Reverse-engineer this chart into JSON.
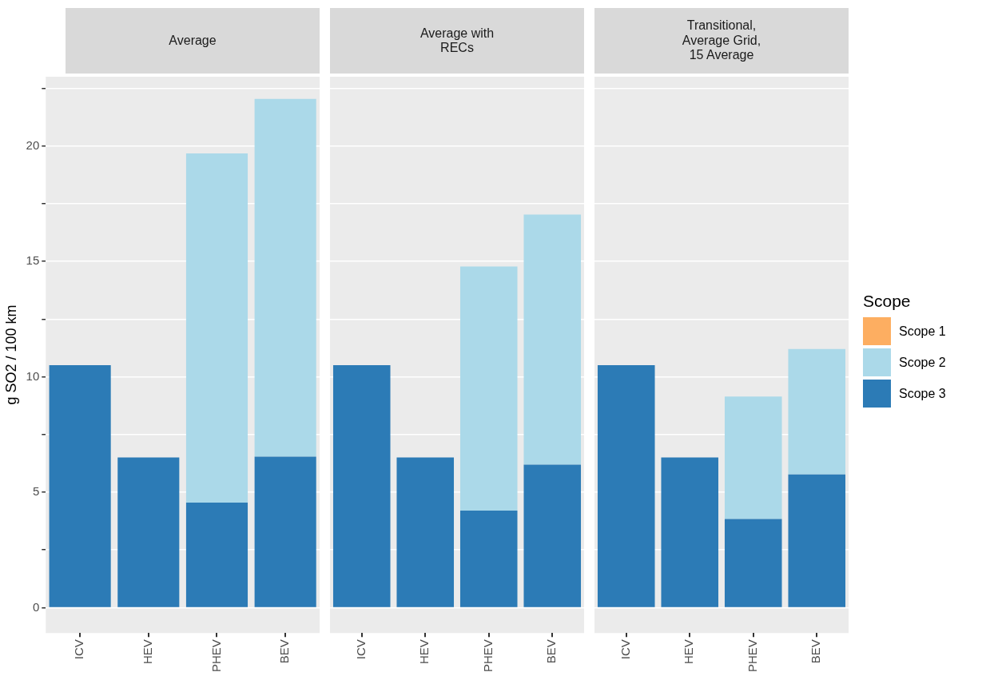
{
  "chart_data": [
    {
      "type": "bar",
      "title": "Average",
      "ylabel": "g SO2 / 100 km",
      "categories": [
        "ICV",
        "HEV",
        "PHEV",
        "BEV"
      ],
      "stacked": true,
      "grid": "y",
      "legend": "right",
      "legend_title": "Scope",
      "series": [
        {
          "name": "Scope 3",
          "color": "#2c7bb6",
          "values": [
            10.5,
            6.5,
            4.55,
            6.54
          ]
        },
        {
          "name": "Scope 2",
          "color": "#abd9e9",
          "values": [
            0,
            0,
            15.13,
            15.5
          ]
        },
        {
          "name": "Scope 1",
          "color": "#fdae61",
          "values": [
            0,
            0,
            0,
            0
          ]
        }
      ],
      "ylim": [
        -1.1,
        23
      ],
      "yticks": [
        0,
        {
          "value": 2.5,
          "label": null
        },
        5,
        {
          "value": 7.5,
          "label": null
        },
        10,
        {
          "value": 12.5,
          "label": null
        },
        15,
        {
          "value": 17.5,
          "label": null
        },
        20,
        {
          "value": 22.5,
          "label": null
        }
      ]
    },
    {
      "type": "bar",
      "title": "Average with\nRECs",
      "categories": [
        "ICV",
        "HEV",
        "PHEV",
        "BEV"
      ],
      "stacked": true,
      "grid": "y",
      "tick_labels": "x",
      "series": [
        {
          "color": "#2c7bb6",
          "values": [
            10.5,
            6.5,
            4.2,
            6.19
          ]
        },
        {
          "color": "#abd9e9",
          "values": [
            0,
            0,
            10.58,
            10.84
          ]
        },
        {
          "color": "#fdae61",
          "values": [
            0,
            0,
            0,
            0
          ]
        }
      ],
      "ylim": [
        -1.1,
        23
      ],
      "yticks": [
        0,
        {
          "value": 2.5,
          "label": null
        },
        5,
        {
          "value": 7.5,
          "label": null
        },
        10,
        {
          "value": 12.5,
          "label": null
        },
        15,
        {
          "value": 17.5,
          "label": null
        },
        20,
        {
          "value": 22.5,
          "label": null
        }
      ]
    },
    {
      "type": "bar",
      "title": "Transitional,\nAverage Grid,\n15 Average",
      "categories": [
        "ICV",
        "HEV",
        "PHEV",
        "BEV"
      ],
      "stacked": true,
      "grid": "y",
      "tick_labels": "x",
      "series": [
        {
          "color": "#2c7bb6",
          "values": [
            10.5,
            6.5,
            3.84,
            5.77
          ]
        },
        {
          "color": "#abd9e9",
          "values": [
            0,
            0,
            5.3,
            5.43
          ]
        },
        {
          "color": "#fdae61",
          "values": [
            0,
            0,
            0,
            0
          ]
        }
      ],
      "ylim": [
        -1.1,
        23
      ],
      "yticks": [
        0,
        {
          "value": 2.5,
          "label": null
        },
        5,
        {
          "value": 7.5,
          "label": null
        },
        10,
        {
          "value": 12.5,
          "label": null
        },
        15,
        {
          "value": 17.5,
          "label": null
        },
        20,
        {
          "value": 22.5,
          "label": null
        }
      ]
    }
  ]
}
